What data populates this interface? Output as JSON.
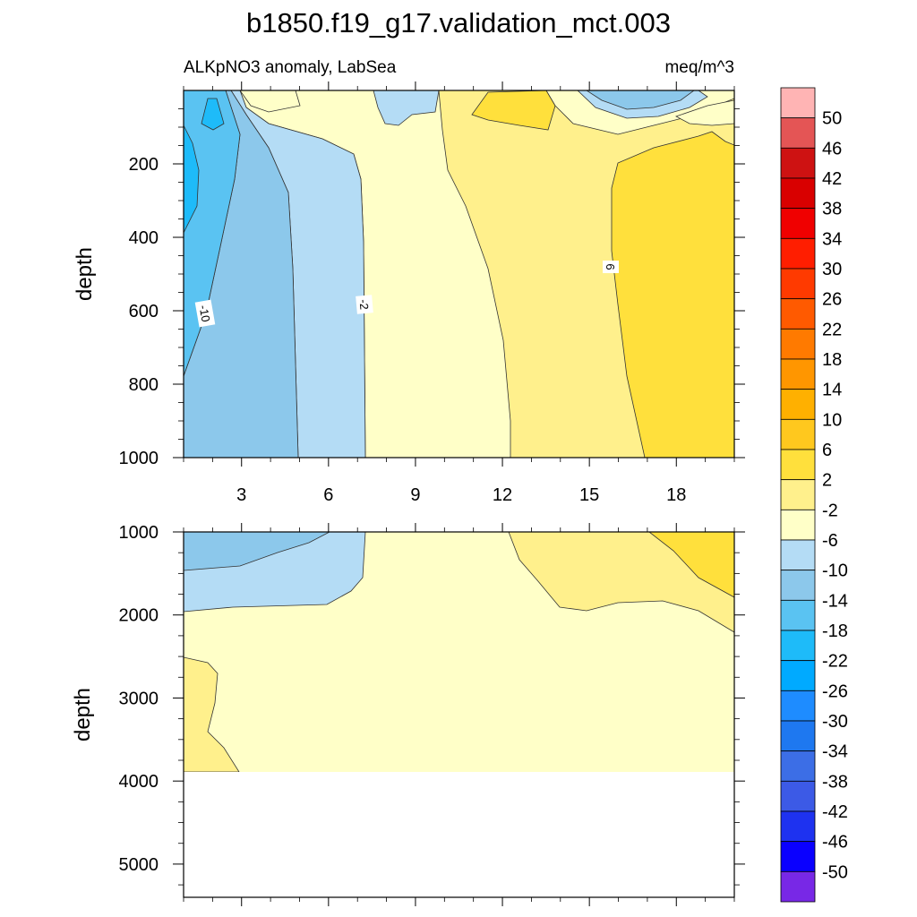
{
  "figure": {
    "title": "b1850.f19_g17.validation_mct.003",
    "subtitle_left": "ALKpNO3 anomaly, LabSea",
    "subtitle_right": "meq/m^3"
  },
  "chart_data": [
    {
      "type": "contour",
      "panel": "upper",
      "ylabel": "depth",
      "xlabel": "",
      "xlim": [
        1,
        20
      ],
      "ylim": [
        1000,
        0
      ],
      "xticks": [
        3,
        6,
        9,
        12,
        15,
        18
      ],
      "yticks": [
        200,
        400,
        600,
        800,
        1000
      ],
      "contour_labels": [
        {
          "text": "-10",
          "x": 1.7,
          "y": 610
        },
        {
          "text": "-2",
          "x": 7.9,
          "y": 590
        },
        {
          "text": "6",
          "x": 16.3,
          "y": 490
        }
      ],
      "grid": false
    },
    {
      "type": "contour",
      "panel": "lower",
      "ylabel": "depth",
      "xlabel": "",
      "xlim": [
        1,
        20
      ],
      "ylim": [
        5400,
        1000
      ],
      "xticks": [
        3,
        6,
        9,
        12,
        15,
        18
      ],
      "yticks": [
        1000,
        2000,
        3000,
        4000,
        5000
      ],
      "data_bottom_depth": 3870,
      "grid": false
    }
  ],
  "colorbar": {
    "labels": [
      "50",
      "46",
      "42",
      "38",
      "34",
      "30",
      "26",
      "22",
      "18",
      "14",
      "10",
      "6",
      "2",
      "-2",
      "-6",
      "-10",
      "-14",
      "-18",
      "-22",
      "-26",
      "-30",
      "-34",
      "-38",
      "-42",
      "-46",
      "-50"
    ],
    "colors": [
      "#FFB4B4",
      "#E45555",
      "#CE1212",
      "#D90000",
      "#F00000",
      "#FF1E00",
      "#FF3A00",
      "#FF5A00",
      "#FF7A00",
      "#FF9600",
      "#FFB000",
      "#FFC81E",
      "#FFE03C",
      "#FFF08C",
      "#FFFFC8",
      "#B4DCF5",
      "#8CC8EB",
      "#5AC3F2",
      "#1EBBF9",
      "#00AAFF",
      "#1E8CFF",
      "#1E78F0",
      "#3C6EE6",
      "#3C5AE6",
      "#1E32F0",
      "#0A00FF",
      "#7828E6"
    ]
  }
}
